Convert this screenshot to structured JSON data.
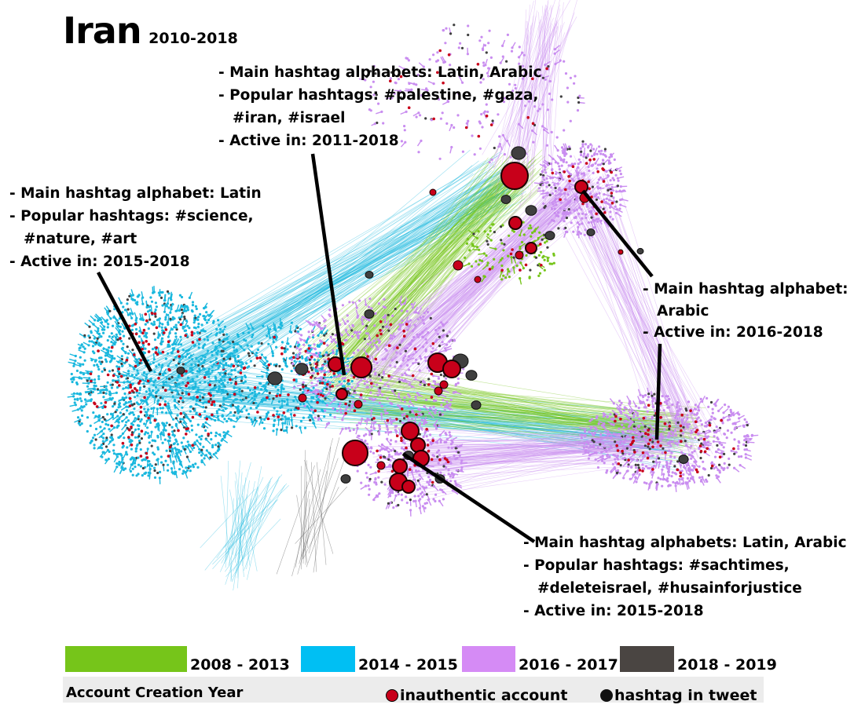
{
  "title": {
    "main": "Iran",
    "years": "2010-2018"
  },
  "annotations": [
    {
      "lines": [
        "- Main hashtag alphabets: Latin, Arabic",
        "- Popular hashtags: #palestine, #gaza,",
        "#iran, #israel",
        "- Active in: 2011-2018"
      ]
    },
    {
      "lines": [
        "- Main hashtag alphabet: Latin",
        "- Popular hashtags: #science,",
        "#nature, #art",
        "- Active in: 2015-2018"
      ]
    },
    {
      "lines": [
        "- Main hashtag alphabet:",
        "Arabic",
        "- Active in: 2016-2018"
      ]
    },
    {
      "lines": [
        "- Main hashtag alphabets: Latin, Arabic",
        "- Popular hashtags: #sachtimes,",
        "#deleteisrael, #husainforjustice",
        "- Active in: 2015-2018"
      ]
    }
  ],
  "legend": {
    "title": "Account Creation Year",
    "years": [
      {
        "label": "2008 - 2013",
        "color": "#76c51a"
      },
      {
        "label": "2014 - 2015",
        "color": "#00bff3"
      },
      {
        "label": "2016 - 2017",
        "color": "#d58bf5"
      },
      {
        "label": "2018 - 2019",
        "color": "#4a4542"
      }
    ],
    "markers": [
      {
        "label": "inauthentic account",
        "color": "#c8001a"
      },
      {
        "label": "hashtag in tweet",
        "color": "#111111"
      }
    ]
  },
  "colors": {
    "cyan": "#1ab8de",
    "green": "#76c51a",
    "purple": "#c98df0",
    "dark": "#3f3f3f",
    "red": "#c8001a"
  }
}
